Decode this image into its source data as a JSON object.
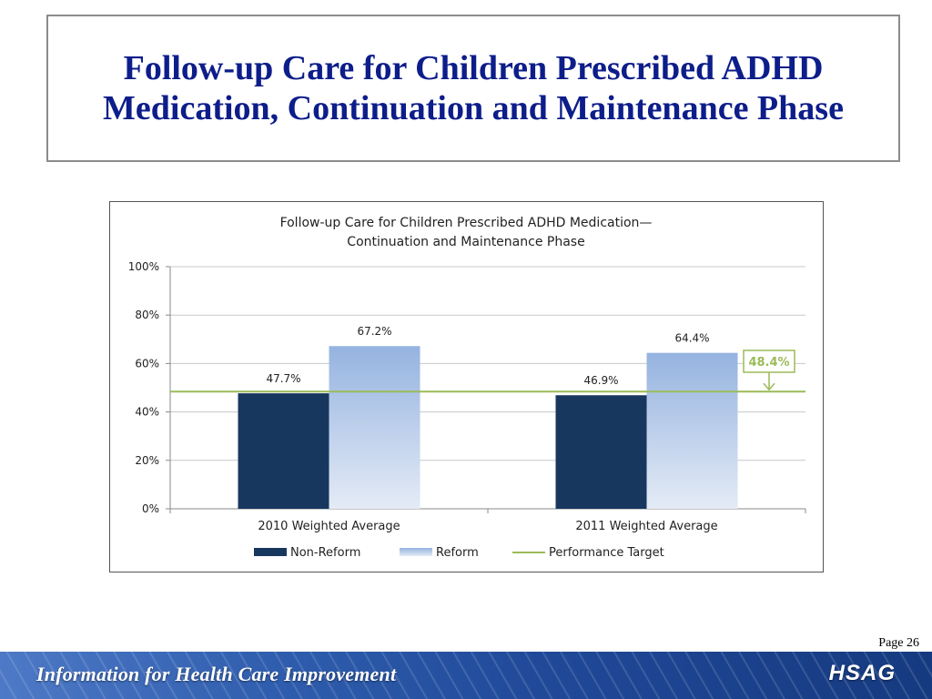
{
  "slide": {
    "title": "Follow-up Care for Children Prescribed ADHD Medication, Continuation and Maintenance Phase",
    "page_label": "Page 26"
  },
  "footer": {
    "tagline": "Information for Health Care Improvement",
    "logo_text": "HSAG"
  },
  "colors": {
    "title": "#0d1d8a",
    "non_reform": "#17375e",
    "reform_top": "#95b3e0",
    "reform_bottom": "#e4ebf6",
    "target_line": "#9bbb59"
  },
  "chart_data": {
    "type": "bar",
    "title_lines": [
      "Follow-up Care for Children Prescribed ADHD Medication—",
      "Continuation and Maintenance Phase"
    ],
    "categories": [
      "2010 Weighted Average",
      "2011 Weighted Average"
    ],
    "series": [
      {
        "name": "Non-Reform",
        "values": [
          47.7,
          46.9
        ],
        "labels": [
          "47.7%",
          "46.9%"
        ]
      },
      {
        "name": "Reform",
        "values": [
          67.2,
          64.4
        ],
        "labels": [
          "67.2%",
          "64.4%"
        ]
      }
    ],
    "target": {
      "name": "Performance Target",
      "value": 48.4,
      "label": "48.4%"
    },
    "ylim": [
      0,
      100
    ],
    "yticks": [
      "0%",
      "20%",
      "40%",
      "60%",
      "80%",
      "100%"
    ],
    "grid": true,
    "legend": "bottom"
  }
}
